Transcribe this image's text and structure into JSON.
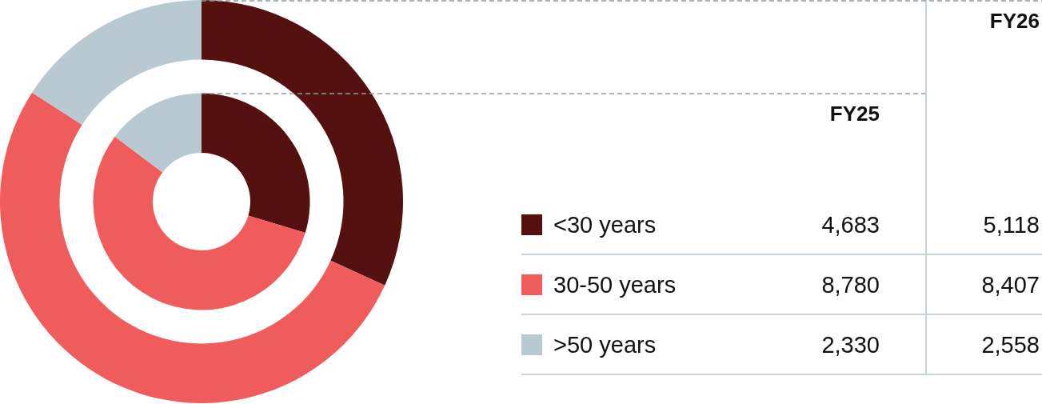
{
  "chart_data": {
    "type": "donut",
    "categories": [
      "<30 years",
      "30-50 years",
      ">50 years"
    ],
    "colors": [
      "#551010",
      "#f05c5c",
      "#b9c9d1"
    ],
    "series": [
      {
        "name": "FY25",
        "values": [
          4683,
          8780,
          2330
        ],
        "value_labels": [
          "4,683",
          "8,780",
          "2,330"
        ]
      },
      {
        "name": "FY26",
        "values": [
          5118,
          8407,
          2558
        ],
        "value_labels": [
          "5,118",
          "8,407",
          "2,558"
        ]
      }
    ],
    "legend": "right"
  }
}
